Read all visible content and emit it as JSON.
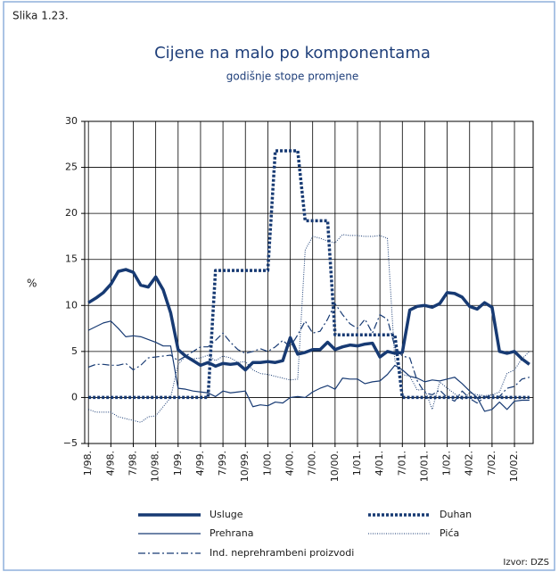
{
  "figure_label": "Slika 1.23.",
  "source": "Izvor: DZS",
  "chart_data": {
    "type": "line",
    "title": "Cijene na malo po komponentama",
    "subtitle": "godišnje stope promjene",
    "y_label": "%",
    "categories": [
      "1/98.",
      null,
      null,
      "4/98.",
      null,
      null,
      "7/98.",
      null,
      null,
      "10/98.",
      null,
      null,
      "1/99.",
      null,
      null,
      "4/99.",
      null,
      null,
      "7/99.",
      null,
      null,
      "10/99.",
      null,
      null,
      "1/00.",
      null,
      null,
      "4/00.",
      null,
      null,
      "7/00.",
      null,
      null,
      "10/00.",
      null,
      null,
      "1/01.",
      null,
      null,
      "4/01.",
      null,
      null,
      "7/01.",
      null,
      null,
      "10/01.",
      null,
      null,
      "1/02.",
      null,
      null,
      "4/02.",
      null,
      null,
      "7/02.",
      null,
      null,
      "10/02.",
      null,
      null
    ],
    "ylim": [
      -5,
      30
    ],
    "yticks": [
      {
        "value": -5,
        "label": "−5"
      },
      0,
      5,
      10,
      15,
      20,
      25,
      30
    ],
    "grid": true,
    "legend": "bottom",
    "series": [
      {
        "name": "Usluge",
        "color": "#173a73",
        "style": "thick-solid",
        "values": [
          10.3,
          10.8,
          11.4,
          12.3,
          13.7,
          13.9,
          13.6,
          12.2,
          12.0,
          13.1,
          11.7,
          9.2,
          5.2,
          4.5,
          4.0,
          3.5,
          3.8,
          3.4,
          3.7,
          3.6,
          3.7,
          3.0,
          3.8,
          3.8,
          3.9,
          3.8,
          4.0,
          6.5,
          4.7,
          4.9,
          5.2,
          5.2,
          6.0,
          5.2,
          5.5,
          5.7,
          5.6,
          5.8,
          5.9,
          4.4,
          5.0,
          4.8,
          4.9,
          9.5,
          9.9,
          10.0,
          9.8,
          10.2,
          11.4,
          11.3,
          10.9,
          9.9,
          9.6,
          10.3,
          9.8,
          5.0,
          4.8,
          5.0,
          4.2,
          3.6
        ]
      },
      {
        "name": "Duhan",
        "color": "#173a73",
        "style": "thick-dotted",
        "values": [
          0,
          0,
          0,
          0,
          0,
          0,
          0,
          0,
          0,
          0,
          0,
          0,
          0,
          0,
          0,
          0,
          0,
          13.8,
          13.8,
          13.8,
          13.8,
          13.8,
          13.8,
          13.8,
          13.8,
          26.8,
          26.8,
          26.8,
          26.8,
          19.2,
          19.2,
          19.2,
          19.2,
          6.8,
          6.8,
          6.8,
          6.8,
          6.8,
          6.8,
          6.8,
          6.8,
          6.8,
          0,
          0,
          0,
          0,
          0,
          0,
          0,
          0,
          0,
          0,
          0,
          0,
          0,
          0,
          0,
          0,
          0,
          0
        ]
      },
      {
        "name": "Prehrana",
        "color": "#173a73",
        "style": "thin-solid",
        "values": [
          7.3,
          7.7,
          8.1,
          8.3,
          7.5,
          6.6,
          6.7,
          6.6,
          6.3,
          6.0,
          5.6,
          5.6,
          1.0,
          0.9,
          0.7,
          0.6,
          0.5,
          0.1,
          0.7,
          0.5,
          0.6,
          0.7,
          -1.0,
          -0.8,
          -0.9,
          -0.5,
          -0.6,
          0.0,
          0.1,
          0.0,
          0.6,
          1.0,
          1.3,
          0.9,
          2.1,
          2.0,
          2.0,
          1.5,
          1.7,
          1.8,
          2.5,
          3.5,
          3.0,
          2.3,
          2.1,
          1.7,
          1.9,
          1.8,
          2.0,
          2.2,
          1.5,
          0.7,
          0.0,
          -1.5,
          -1.3,
          -0.5,
          -1.3,
          -0.4,
          -0.3,
          -0.3
        ]
      },
      {
        "name": "Pića",
        "color": "#173a73",
        "style": "thin-dotted",
        "values": [
          -1.3,
          -1.6,
          -1.6,
          -1.6,
          -2.1,
          -2.3,
          -2.5,
          -2.7,
          -2.1,
          -2.0,
          -1.0,
          0.0,
          3.6,
          4.5,
          4.2,
          4.3,
          4.6,
          4.0,
          4.5,
          4.3,
          3.8,
          3.9,
          3.0,
          2.6,
          2.5,
          2.3,
          2.1,
          1.9,
          2.0,
          16.0,
          17.5,
          17.3,
          17.0,
          16.8,
          17.7,
          17.6,
          17.6,
          17.5,
          17.5,
          17.6,
          17.3,
          4.0,
          2.5,
          2.3,
          0.8,
          0.9,
          -1.3,
          1.7,
          1.0,
          0.4,
          -0.2,
          0.5,
          0.3,
          0.2,
          0.3,
          0.6,
          2.6,
          3.0,
          4.2,
          5.0
        ]
      },
      {
        "name": "Ind. neprehrambeni proizvodi",
        "color": "#173a73",
        "style": "thin-dashdot",
        "values": [
          3.3,
          3.6,
          3.6,
          3.5,
          3.5,
          3.7,
          3.0,
          3.5,
          4.3,
          4.4,
          4.5,
          4.6,
          4.0,
          4.5,
          5.0,
          5.5,
          5.5,
          6.2,
          7.0,
          6.0,
          5.2,
          4.8,
          5.0,
          5.3,
          5.0,
          5.5,
          6.2,
          5.5,
          6.8,
          8.3,
          7.0,
          7.2,
          8.5,
          10.2,
          9.0,
          8.0,
          7.5,
          8.5,
          7.0,
          9.0,
          8.5,
          5.5,
          4.5,
          4.3,
          1.8,
          0.5,
          0.3,
          0.8,
          0.0,
          -0.4,
          0.7,
          -0.1,
          -0.6,
          0.0,
          0.3,
          0.1,
          1.0,
          1.2,
          2.0,
          2.2
        ]
      }
    ]
  }
}
